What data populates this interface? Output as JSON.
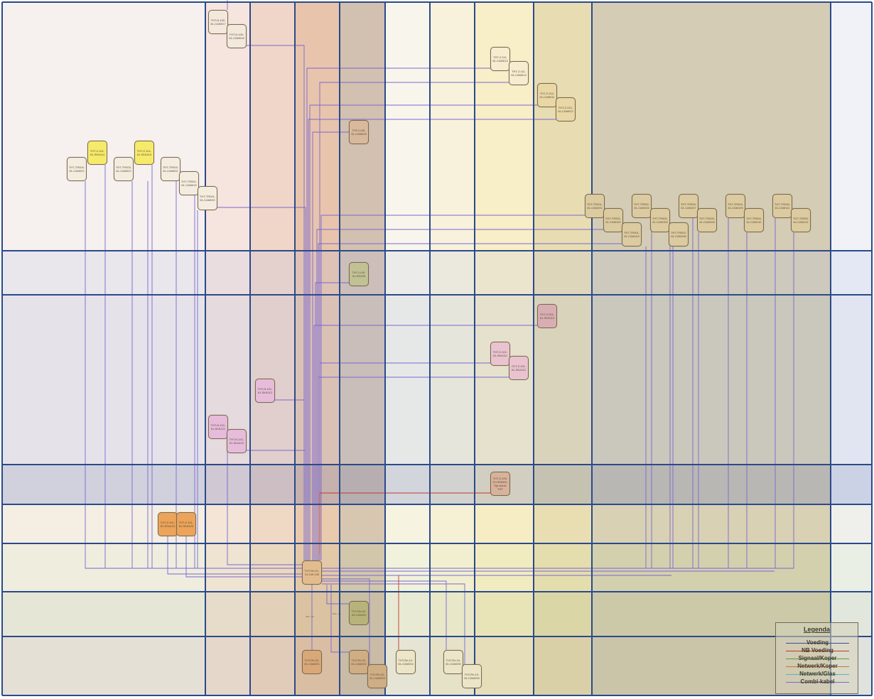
{
  "colors": {
    "voeding": "#3b4fa0",
    "nb_voeding": "#c0392b",
    "signaal_koper": "#5a9a4a",
    "netwerk_koper": "#c0783a",
    "netwerk_glas": "#5ab6b0",
    "combi_kabel": "#7a68d0",
    "grid_line": "#2a4a8a"
  },
  "nodes": {
    "cam0017": "THT-N.100-61-CAM017",
    "cam0018": "THT-N.100-61-CAM018",
    "cam0013": "THT-Z.111-61-CAM013",
    "cam0014": "THT-Z.111-61-CAM014",
    "cam0011": "THT-Z.212-61-CAM011",
    "cam0012": "THT-Z.212-61-CAM012",
    "cam0025": "THT-LL00-61-CAM025",
    "ska114": "THT-Z.101-61-SKA114",
    "ska115": "THT-Z.101-61-SKA115",
    "cam021": "THT-TR004-61-CAM021",
    "cam022": "THT-TR003-61-CAM022",
    "cam001": "THT-TR003-61-CAM001",
    "cam019": "THT-TR001-61-CAM019",
    "cam020": "THT-TR001-61-CAM020",
    "kn206": "THT-LL00-61-KN206",
    "tr_cam101": "THT-TR001-61-CAM101",
    "tr_cam102": "THT-TR001-61-CAM102",
    "tr_cam103": "THT-TR001-61-CAM103",
    "tr_cam104": "THT-TR002-61-CAM104",
    "tr_cam105": "THT-TR002-61-CAM105",
    "tr_cam106": "THT-TR002-61-CAM106",
    "tr_cam107": "THT-TR003-61-CAM107",
    "tr_cam108": "THT-TR003-61-CAM108",
    "tr_cam109": "THT-TR004-61-CAM109",
    "tr_cam110": "THT-TR004-61-CAM110",
    "tr_cam111": "THT-TR005-61-CAM111",
    "tr_cam112": "THT-TR005-61-CAM112",
    "ska110": "THT-Z.201-61-SKA110",
    "ska111": "THT-Z.101-61-SKA111",
    "ska112": "THT-Z.101-61-SKA112",
    "ska113": "THT-N.101-61-SKA113",
    "ska121": "THT-N.101-61-SKA121",
    "ska122": "THT-N.101-61-SKA122",
    "hdmi": "THT-Z.100-10-HDMI01-Tijd stand-THT",
    "ska124": "THT-Z.101-61-SKA124",
    "ska125": "THT-Z.101-61-SKA125",
    "cw100": "THT-Re.01-13-CW-100",
    "lva206": "THT-Re.02-61-LVA206",
    "cam201": "THT-Re.01-61-CAM201",
    "cam202": "THT-Re.02-61-CAM202",
    "cam203": "THT-Re.02-61-CAM203",
    "cam204": "THT-Re.10-61-CAM204",
    "cam205": "THT-Re.10-61-CAM205",
    "cam206": "THT-Re.10-61-CAM206"
  },
  "wire_labels": {
    "a": "Tele - 60",
    "b": "Tele - 60"
  },
  "legend": {
    "title": "Legenda",
    "items": [
      {
        "label": "Voeding",
        "color": "#3b4fa0"
      },
      {
        "label": "NB Voeding",
        "color": "#c0392b"
      },
      {
        "label": "Signaal/Koper",
        "color": "#5a9a4a"
      },
      {
        "label": "Netwerk/Koper",
        "color": "#c0783a"
      },
      {
        "label": "Netwerk/Glas",
        "color": "#5ab6b0"
      },
      {
        "label": "Combi-kabel",
        "color": "#7a68d0"
      }
    ]
  }
}
